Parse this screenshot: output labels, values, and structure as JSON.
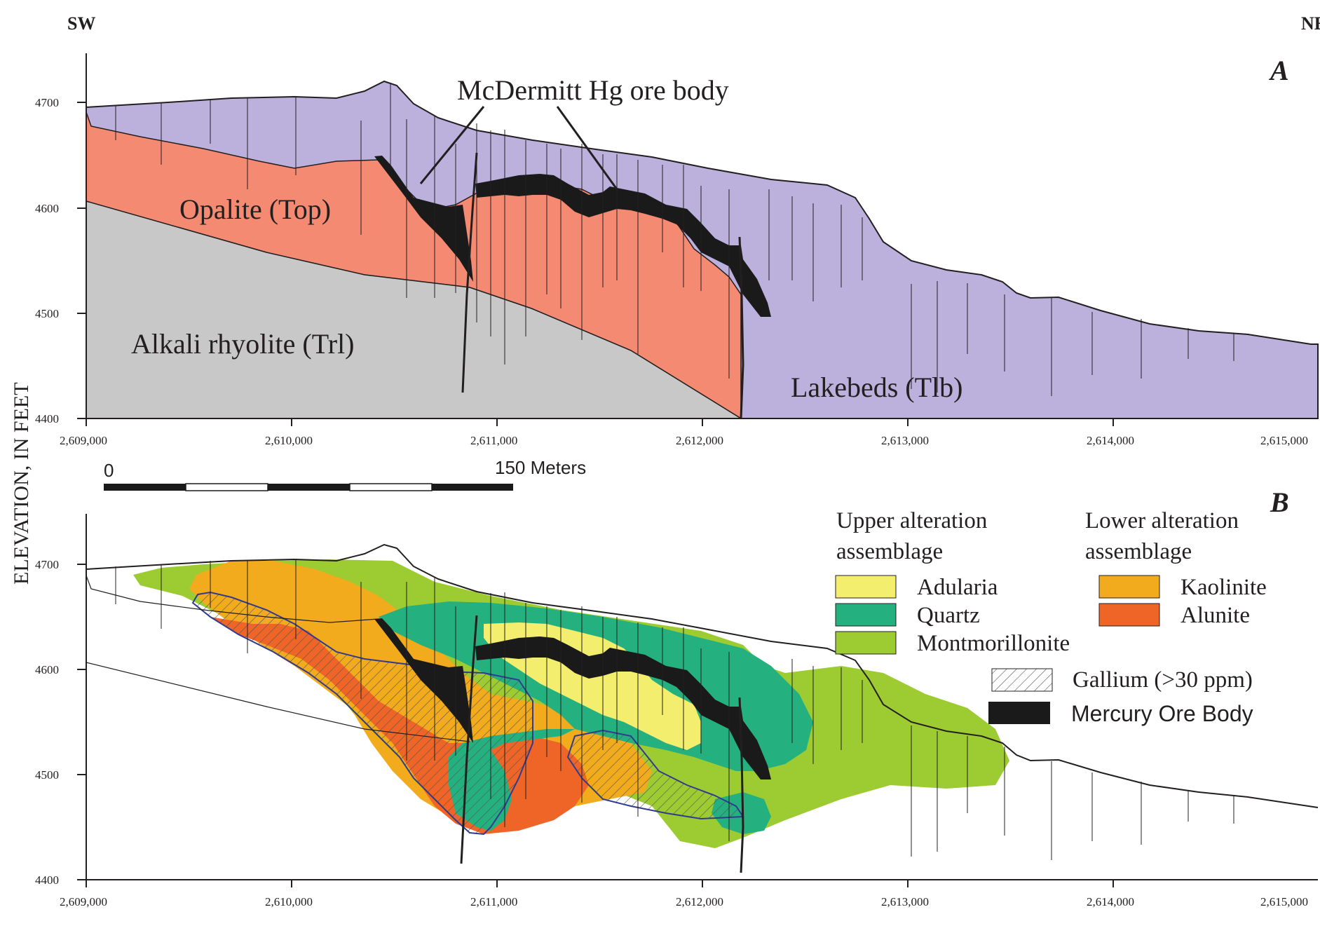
{
  "direction": {
    "left": "SW",
    "right": "NE"
  },
  "y_axis_label": "ELEVATION, IN FEET",
  "panel_a": {
    "letter": "A",
    "y_ticks": [
      "4700",
      "4600",
      "4500",
      "4400"
    ],
    "x_ticks": [
      "2,609,000",
      "2,610,000",
      "2,611,000",
      "2,612,000",
      "2,613,000",
      "2,614,000",
      "2,615,000"
    ],
    "units": {
      "opalite": "Opalite (Top)",
      "rhyolite": "Alkali rhyolite (Trl)",
      "lakebeds": "Lakebeds (Tlb)"
    },
    "ore_body_callout": "McDermitt Hg ore body",
    "colors": {
      "lakebeds": "#bcb0dc",
      "opalite": "#f58a72",
      "rhyolite": "#c8c8c8",
      "ore": "#1a1a1a"
    }
  },
  "scale_bar": {
    "start": "0",
    "end": "150 Meters"
  },
  "panel_b": {
    "letter": "B",
    "y_ticks": [
      "4700",
      "4600",
      "4500",
      "4400"
    ],
    "x_ticks": [
      "2,609,000",
      "2,610,000",
      "2,611,000",
      "2,612,000",
      "2,613,000",
      "2,614,000",
      "2,615,000"
    ],
    "legend": {
      "upper_title": [
        "Upper alteration",
        "assemblage"
      ],
      "lower_title": [
        "Lower alteration",
        "assemblage"
      ],
      "adularia": "Adularia",
      "quartz": "Quartz",
      "montmorillonite": "Montmorillonite",
      "kaolinite": "Kaolinite",
      "alunite": "Alunite",
      "gallium": "Gallium (>30 ppm)",
      "mercury": "Mercury Ore Body"
    },
    "colors": {
      "adularia": "#f3ee6d",
      "quartz": "#25b080",
      "montmorillonite": "#9ccb32",
      "kaolinite": "#f1ab1c",
      "alunite": "#ee6527",
      "mercury": "#1a1a1a"
    }
  }
}
